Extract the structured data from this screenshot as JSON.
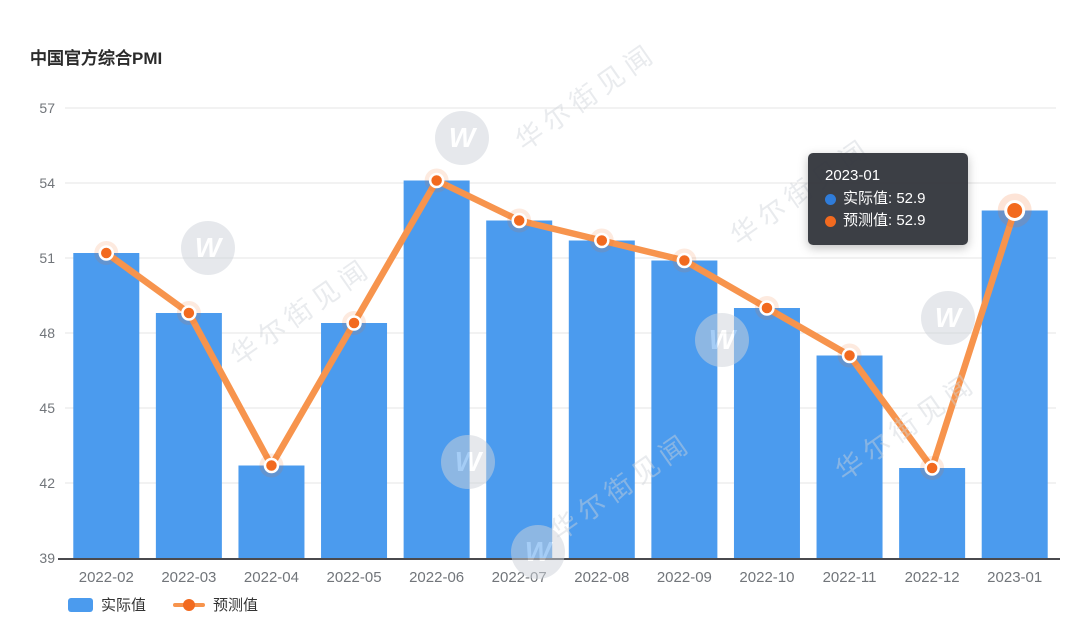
{
  "title": "中国官方综合PMI",
  "watermark": {
    "text": "华尔街见闻",
    "logo_letter": "W"
  },
  "legend": {
    "items": [
      {
        "label": "实际值",
        "type": "bar"
      },
      {
        "label": "预测值",
        "type": "line"
      }
    ]
  },
  "tooltip": {
    "title": "2023-01",
    "rows": [
      {
        "text": "实际值: 52.9",
        "color": "#2F7CD9"
      },
      {
        "text": "预测值: 52.9",
        "color": "#F26A1F"
      }
    ]
  },
  "colors": {
    "bar": "#4B9BEE",
    "line": "#F7944D",
    "dot": "#F26A1F",
    "grid": "#E4E4E4",
    "axis": "#4A4A4E",
    "tick_label": "#71757A",
    "title": "#2B2B2B",
    "tooltip_bg": "#32353B"
  },
  "chart_data": {
    "type": "bar",
    "title": "中国官方综合PMI",
    "categories": [
      "2022-02",
      "2022-03",
      "2022-04",
      "2022-05",
      "2022-06",
      "2022-07",
      "2022-08",
      "2022-09",
      "2022-10",
      "2022-11",
      "2022-12",
      "2023-01"
    ],
    "series": [
      {
        "name": "实际值",
        "type": "bar",
        "values": [
          51.2,
          48.8,
          42.7,
          48.4,
          54.1,
          52.5,
          51.7,
          50.9,
          49.0,
          47.1,
          42.6,
          52.9
        ]
      },
      {
        "name": "预测值",
        "type": "line",
        "values": [
          51.2,
          48.8,
          42.7,
          48.4,
          54.1,
          52.5,
          51.7,
          50.9,
          49.0,
          47.1,
          42.6,
          52.9
        ]
      }
    ],
    "xlabel": "",
    "ylabel": "",
    "ylim": [
      39,
      57
    ],
    "yticks": [
      39,
      42,
      45,
      48,
      51,
      54,
      57
    ],
    "grid": true,
    "legend_position": "bottom-left",
    "highlight_index": 11
  }
}
